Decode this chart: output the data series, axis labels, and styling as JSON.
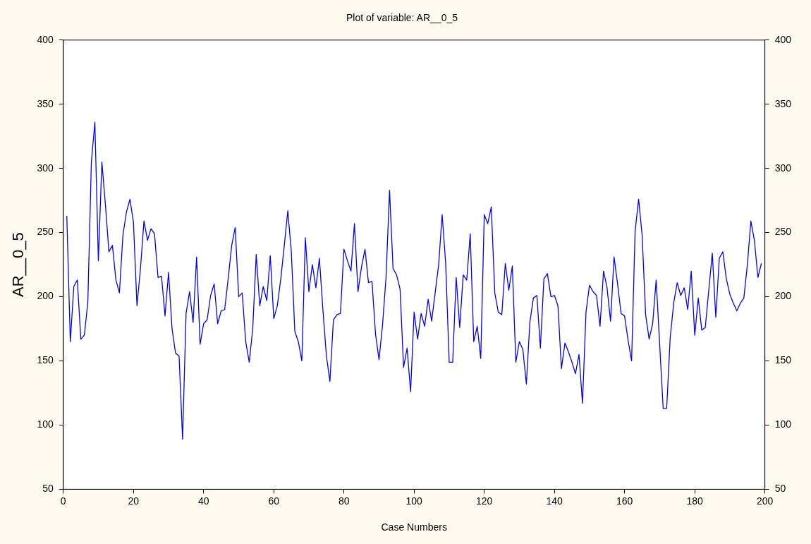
{
  "chart_data": {
    "type": "line",
    "title": "Plot of variable: AR__0_5",
    "xlabel": "Case Numbers",
    "ylabel": "AR__0_5",
    "x": [
      1,
      2,
      3,
      4,
      5,
      6,
      7,
      8,
      9,
      10,
      11,
      12,
      13,
      14,
      15,
      16,
      17,
      18,
      19,
      20,
      21,
      22,
      23,
      24,
      25,
      26,
      27,
      28,
      29,
      30,
      31,
      32,
      33,
      34,
      35,
      36,
      37,
      38,
      39,
      40,
      41,
      42,
      43,
      44,
      45,
      46,
      47,
      48,
      49,
      50,
      51,
      52,
      53,
      54,
      55,
      56,
      57,
      58,
      59,
      60,
      61,
      62,
      63,
      64,
      65,
      66,
      67,
      68,
      69,
      70,
      71,
      72,
      73,
      74,
      75,
      76,
      77,
      78,
      79,
      80,
      81,
      82,
      83,
      84,
      85,
      86,
      87,
      88,
      89,
      90,
      91,
      92,
      93,
      94,
      95,
      96,
      97,
      98,
      99,
      100,
      101,
      102,
      103,
      104,
      105,
      106,
      107,
      108,
      109,
      110,
      111,
      112,
      113,
      114,
      115,
      116,
      117,
      118,
      119,
      120,
      121,
      122,
      123,
      124,
      125,
      126,
      127,
      128,
      129,
      130,
      131,
      132,
      133,
      134,
      135,
      136,
      137,
      138,
      139,
      140,
      141,
      142,
      143,
      144,
      145,
      146,
      147,
      148,
      149,
      150,
      151,
      152,
      153,
      154,
      155,
      156,
      157,
      158,
      159,
      160,
      161,
      162,
      163,
      164,
      165,
      166,
      167,
      168,
      169,
      170,
      171,
      172,
      173,
      174,
      175,
      176,
      177,
      178,
      179,
      180,
      181,
      182,
      183,
      184,
      185,
      186,
      187,
      188,
      189,
      190,
      191,
      192,
      193,
      194,
      195,
      196,
      197,
      198,
      199
    ],
    "series": [
      {
        "color": "#0000ff",
        "values": [
          263,
          165,
          208,
          213,
          167,
          170,
          196,
          305,
          336,
          228,
          305,
          272,
          235,
          240,
          213,
          203,
          248,
          266,
          276,
          258,
          193,
          222,
          259,
          244,
          253,
          249,
          215,
          216,
          185,
          219,
          175,
          156,
          154,
          89,
          187,
          204,
          180,
          231,
          163,
          179,
          182,
          201,
          210,
          179,
          189,
          190,
          214,
          240,
          254,
          200,
          203,
          165,
          149,
          175,
          233,
          193,
          208,
          197,
          232,
          183,
          193,
          214,
          240,
          267,
          235,
          173,
          165,
          150,
          246,
          204,
          225,
          207,
          230,
          190,
          154,
          134,
          182,
          186,
          187,
          237,
          228,
          220,
          257,
          204,
          223,
          237,
          211,
          212,
          171,
          151,
          178,
          215,
          283,
          222,
          217,
          206,
          145,
          160,
          126,
          188,
          167,
          187,
          177,
          198,
          181,
          203,
          225,
          264,
          226,
          149,
          149,
          215,
          176,
          217,
          213,
          249,
          165,
          177,
          152,
          264,
          257,
          270,
          203,
          188,
          186,
          226,
          205,
          224,
          149,
          165,
          159,
          132,
          180,
          199,
          201,
          160,
          214,
          218,
          200,
          201,
          193,
          144,
          164,
          157,
          149,
          140,
          155,
          117,
          188,
          209,
          204,
          201,
          177,
          220,
          207,
          181,
          231,
          210,
          187,
          185,
          166,
          150,
          251,
          276,
          248,
          186,
          167,
          179,
          213,
          163,
          113,
          113,
          168,
          195,
          211,
          201,
          207,
          190,
          220,
          170,
          199,
          174,
          176,
          205,
          234,
          184,
          230,
          235,
          214,
          202,
          195,
          189,
          195,
          199,
          225,
          259,
          244,
          215,
          226
        ]
      }
    ],
    "xlim": [
      0,
      200
    ],
    "xticks": [
      0,
      20,
      40,
      60,
      80,
      100,
      120,
      140,
      160,
      180,
      200
    ],
    "ylim": [
      50,
      400
    ],
    "yticks": [
      50,
      100,
      150,
      200,
      250,
      300,
      350,
      400
    ],
    "y2lim": [
      50,
      400
    ],
    "y2ticks": [
      50,
      100,
      150,
      200,
      250,
      300,
      350,
      400
    ],
    "grid": false,
    "legend": false,
    "marker": "none",
    "line_style": "solid"
  }
}
